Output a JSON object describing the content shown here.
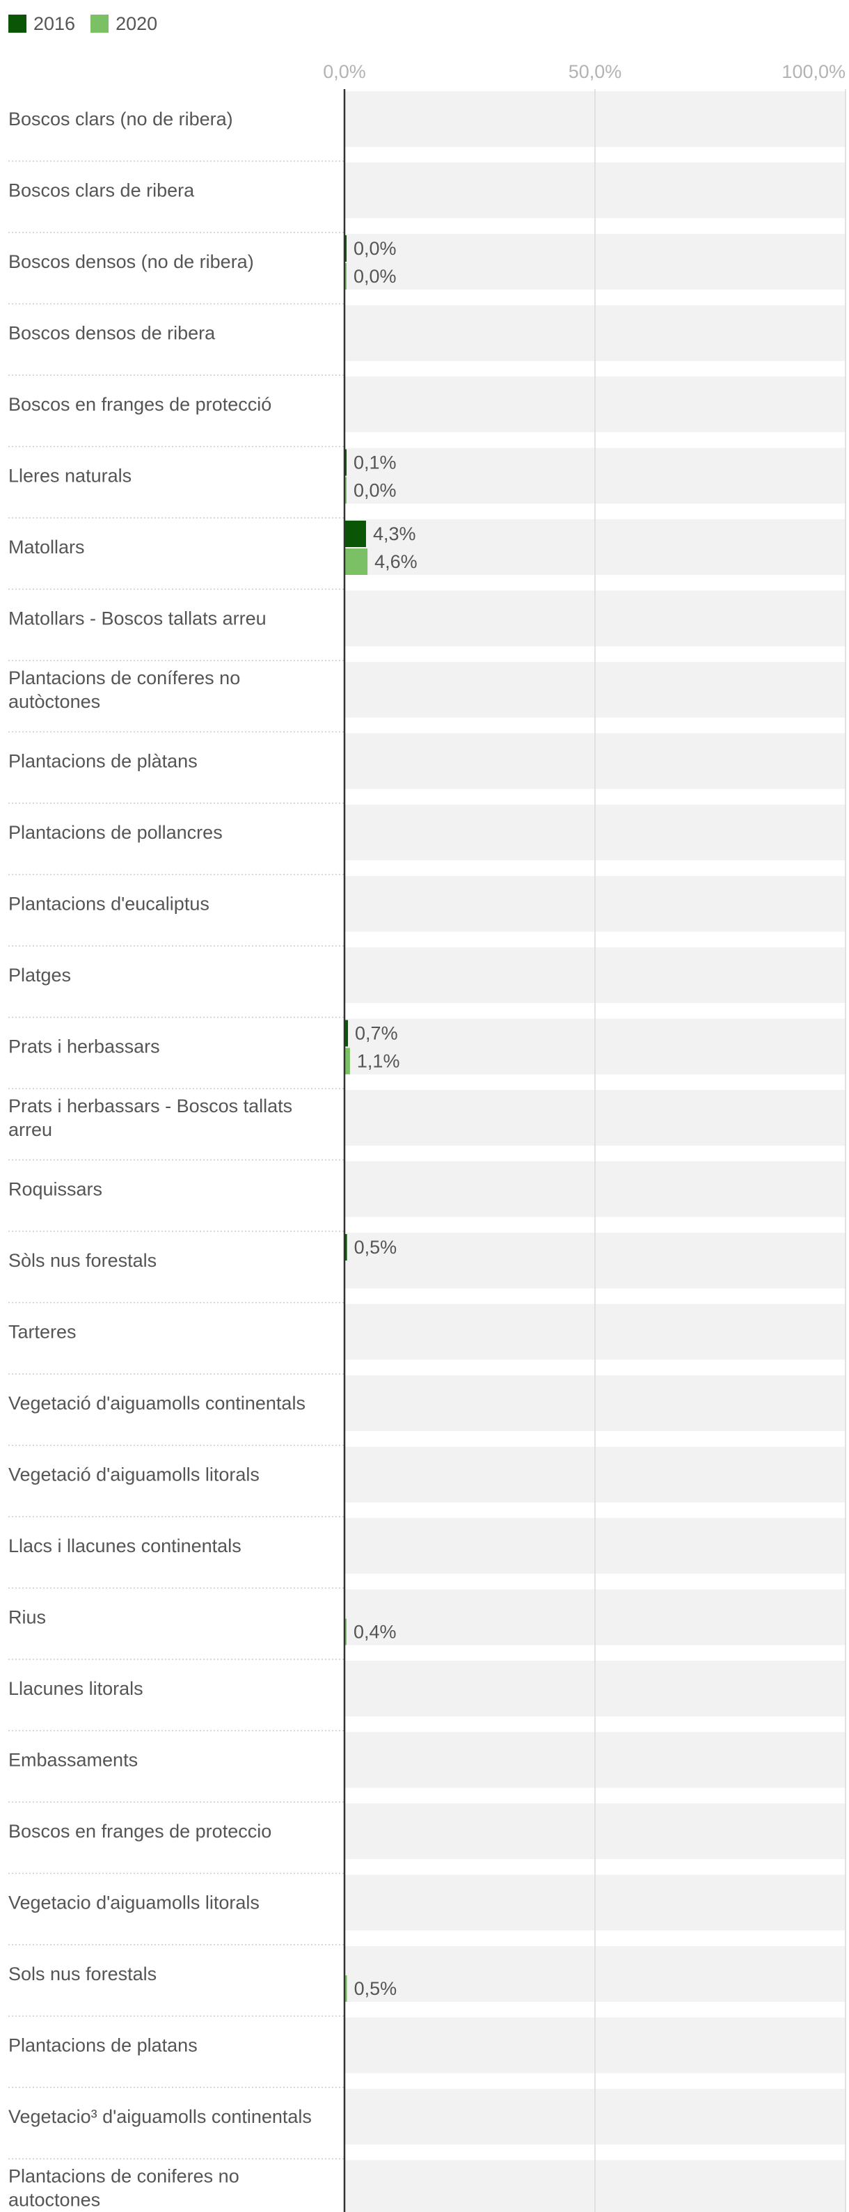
{
  "legend": [
    {
      "name": "2016",
      "color": "#0b5506"
    },
    {
      "name": "2020",
      "color": "#7cc066"
    }
  ],
  "chart_data": {
    "type": "bar",
    "orientation": "horizontal",
    "xlim": [
      0,
      100
    ],
    "x_ticks": [
      "0,0%",
      "50,0%",
      "100,0%"
    ],
    "categories": [
      "Boscos clars (no de ribera)",
      "Boscos clars de ribera",
      "Boscos densos (no de ribera)",
      "Boscos densos de ribera",
      "Boscos en franges de protecció",
      "Lleres naturals",
      "Matollars",
      "Matollars - Boscos tallats arreu",
      "Plantacions de coníferes no autòctones",
      "Plantacions de plàtans",
      "Plantacions de pollancres",
      "Plantacions d'eucaliptus",
      "Platges",
      "Prats i herbassars",
      "Prats i herbassars - Boscos tallats arreu",
      "Roquissars",
      "Sòls nus forestals",
      "Tarteres",
      "Vegetació d'aiguamolls continentals",
      "Vegetació d'aiguamolls litorals",
      "Llacs i llacunes continentals",
      "Rius",
      "Llacunes litorals",
      "Embassaments",
      "Boscos en franges de proteccio",
      "Vegetacio d'aiguamolls litorals",
      "Sols nus forestals",
      "Plantacions de platans",
      "Vegetacio³ d'aiguamolls continentals",
      "Plantacions de coniferes no autoctones"
    ],
    "series": [
      {
        "name": "2016",
        "color": "#0b5506",
        "values": [
          null,
          null,
          0.0,
          null,
          null,
          0.1,
          4.3,
          null,
          null,
          null,
          null,
          null,
          null,
          0.7,
          null,
          null,
          0.5,
          null,
          null,
          null,
          null,
          null,
          null,
          null,
          null,
          null,
          null,
          null,
          null,
          null
        ],
        "labels": [
          null,
          null,
          "0,0%",
          null,
          null,
          "0,1%",
          "4,3%",
          null,
          null,
          null,
          null,
          null,
          null,
          "0,7%",
          null,
          null,
          "0,5%",
          null,
          null,
          null,
          null,
          null,
          null,
          null,
          null,
          null,
          null,
          null,
          null,
          null
        ]
      },
      {
        "name": "2020",
        "color": "#7cc066",
        "values": [
          null,
          null,
          0.0,
          null,
          null,
          0.0,
          4.6,
          null,
          null,
          null,
          null,
          null,
          null,
          1.1,
          null,
          null,
          null,
          null,
          null,
          null,
          null,
          0.4,
          null,
          null,
          null,
          null,
          0.5,
          null,
          null,
          null
        ],
        "labels": [
          null,
          null,
          "0,0%",
          null,
          null,
          "0,0%",
          "4,6%",
          null,
          null,
          null,
          null,
          null,
          null,
          "1,1%",
          null,
          null,
          null,
          null,
          null,
          null,
          null,
          "0,4%",
          null,
          null,
          null,
          null,
          "0,5%",
          null,
          null,
          null
        ]
      }
    ]
  }
}
